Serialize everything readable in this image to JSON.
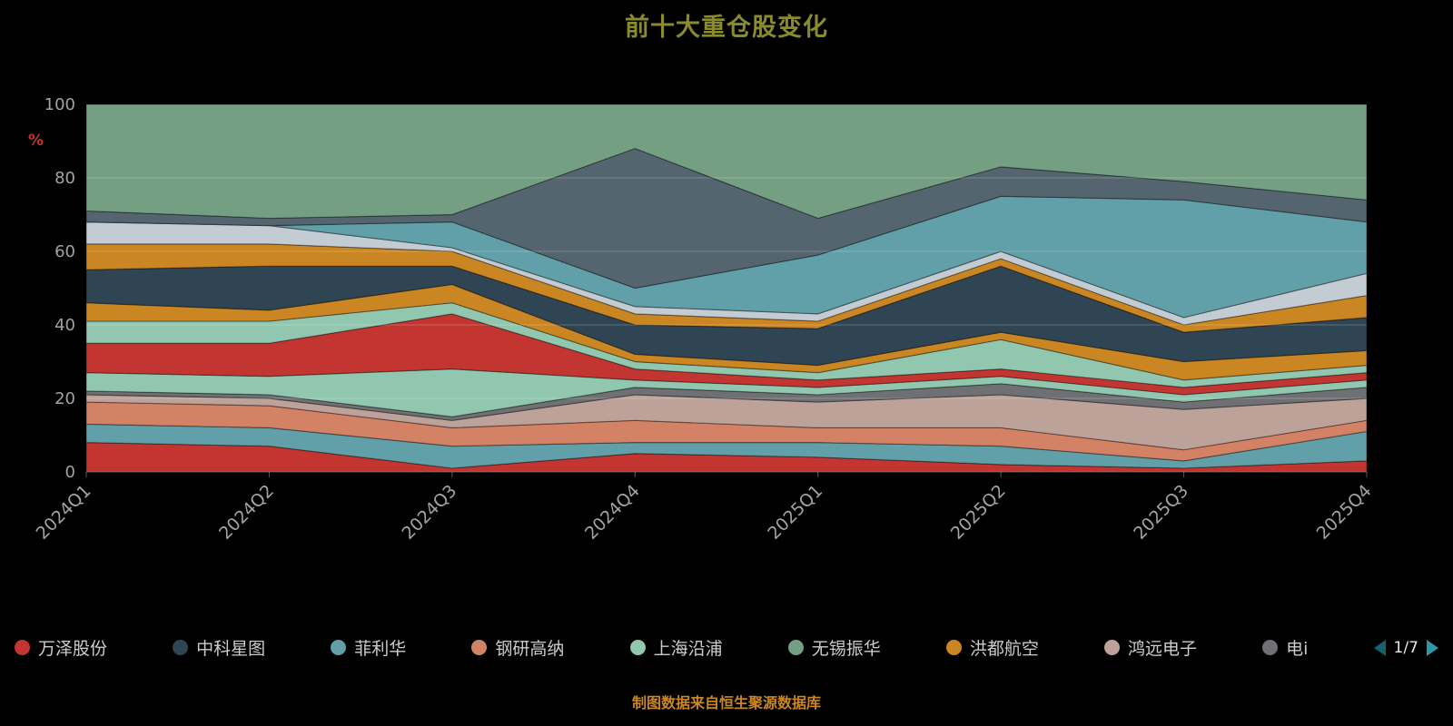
{
  "title": "前十大重仓股变化",
  "footer": "制图数据来自恒生聚源数据库",
  "colors": {
    "background": "#000000",
    "title": "#8a8a2e",
    "footer": "#ca8622",
    "axis_text": "#a3a3a3",
    "percent_label": "#c23531",
    "gridline": "rgba(255,255,255,0.22)",
    "axis_line": "rgba(255,255,255,0.35)"
  },
  "axes": {
    "y_unit": "%",
    "y_ticks": [
      0,
      20,
      40,
      60,
      80,
      100
    ],
    "x_labels": [
      "2024Q1",
      "2024Q2",
      "2024Q3",
      "2024Q4",
      "2025Q1",
      "2025Q2",
      "2025Q3",
      "2025Q4"
    ]
  },
  "legend": {
    "page": "1/7",
    "items": [
      {
        "label": "万泽股份",
        "color": "#c23531"
      },
      {
        "label": "中科星图",
        "color": "#2f4554"
      },
      {
        "label": "菲利华",
        "color": "#61a0a8"
      },
      {
        "label": "钢研高纳",
        "color": "#d48265"
      },
      {
        "label": "上海沿浦",
        "color": "#91c7ae"
      },
      {
        "label": "无锡振华",
        "color": "#749f83"
      },
      {
        "label": "洪都航空",
        "color": "#ca8622"
      },
      {
        "label": "鸿远电子",
        "color": "#bda29a"
      },
      {
        "label": "电i",
        "color": "#6e7074"
      }
    ]
  },
  "chart_data": {
    "type": "area",
    "stacked": true,
    "title": "前十大重仓股变化",
    "xlabel": "",
    "ylabel": "%",
    "ylim": [
      0,
      100
    ],
    "grid": true,
    "legend_position": "bottom",
    "categories": [
      "2024Q1",
      "2024Q2",
      "2024Q3",
      "2024Q4",
      "2025Q1",
      "2025Q2",
      "2025Q3",
      "2025Q4"
    ],
    "series": [
      {
        "name": "万泽股份",
        "color": "#c23531",
        "values": [
          8,
          7,
          1,
          5,
          4,
          2,
          1,
          3
        ]
      },
      {
        "name": "菲利华",
        "color": "#61a0a8",
        "values": [
          5,
          5,
          6,
          3,
          4,
          5,
          2,
          8
        ]
      },
      {
        "name": "钢研高纳",
        "color": "#d48265",
        "values": [
          6,
          6,
          5,
          6,
          4,
          5,
          3,
          3
        ]
      },
      {
        "name": "鸿远电子",
        "color": "#bda29a",
        "values": [
          2,
          2,
          2,
          7,
          7,
          9,
          11,
          6
        ]
      },
      {
        "name": "电i",
        "color": "#6e7074",
        "values": [
          1,
          1,
          1,
          2,
          2,
          3,
          2,
          3
        ]
      },
      {
        "name": "上海沿浦",
        "color": "#91c7ae",
        "values": [
          5,
          5,
          13,
          2,
          2,
          2,
          2,
          2
        ]
      },
      {
        "name": "unlabeled-red",
        "color": "#c23531",
        "values": [
          8,
          9,
          15,
          3,
          2,
          2,
          2,
          2
        ]
      },
      {
        "name": "unlabeled-mint",
        "color": "#91c7ae",
        "values": [
          6,
          6,
          3,
          2,
          2,
          8,
          2,
          2
        ]
      },
      {
        "name": "洪都航空",
        "color": "#ca8622",
        "values": [
          5,
          3,
          5,
          2,
          2,
          2,
          5,
          4
        ]
      },
      {
        "name": "中科星图",
        "color": "#2f4554",
        "values": [
          9,
          12,
          5,
          8,
          10,
          18,
          8,
          9
        ]
      },
      {
        "name": "unlabeled-orange",
        "color": "#ca8622",
        "values": [
          7,
          6,
          4,
          3,
          2,
          2,
          2,
          6
        ]
      },
      {
        "name": "unlabeled-gray",
        "color": "#c4ccd3",
        "values": [
          6,
          5,
          1,
          2,
          2,
          2,
          2,
          6
        ]
      },
      {
        "name": "unlabeled-teal",
        "color": "#61a0a8",
        "values": [
          0,
          0,
          7,
          5,
          16,
          15,
          32,
          14
        ]
      },
      {
        "name": "unlabeled-slate",
        "color": "#546570",
        "values": [
          3,
          2,
          2,
          38,
          10,
          8,
          5,
          6
        ]
      },
      {
        "name": "无锡振华",
        "color": "#749f83",
        "values": [
          29,
          31,
          30,
          12,
          31,
          17,
          21,
          26
        ]
      }
    ]
  }
}
